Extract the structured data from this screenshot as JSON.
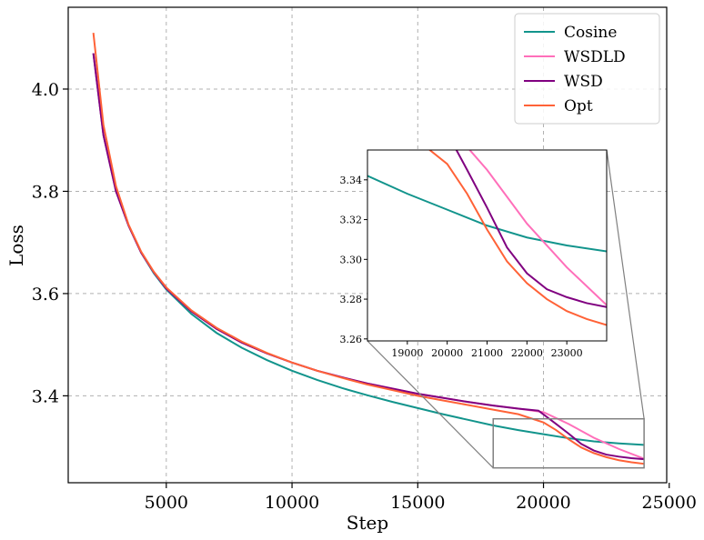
{
  "chart_data": {
    "type": "line",
    "xlabel": "Step",
    "ylabel": "Loss",
    "xlim": [
      1100,
      24900
    ],
    "ylim": [
      3.23,
      4.16
    ],
    "xticks": [
      5000,
      10000,
      15000,
      20000,
      25000
    ],
    "xtick_labels": [
      "5000",
      "10000",
      "15000",
      "20000",
      "25000"
    ],
    "yticks": [
      3.4,
      3.6,
      3.8,
      4.0
    ],
    "ytick_labels": [
      "3.4",
      "3.6",
      "3.8",
      "4.0"
    ],
    "grid": true,
    "legend_position": "top-right",
    "colors": {
      "Cosine": "#12948c",
      "WSDLD": "#ff6fba",
      "WSD": "#800080",
      "Opt": "#ff6237",
      "axes": "#000000",
      "grid": "#b0b0b0",
      "inset_box": "#808080"
    },
    "series": [
      {
        "name": "Cosine",
        "x": [
          2100,
          2500,
          3000,
          3500,
          4000,
          4500,
          5000,
          6000,
          7000,
          8000,
          9000,
          10000,
          11000,
          12000,
          13000,
          14000,
          15000,
          16000,
          17000,
          18000,
          19000,
          20000,
          21000,
          22000,
          23000,
          24000
        ],
        "y": [
          4.07,
          3.91,
          3.8,
          3.733,
          3.68,
          3.64,
          3.608,
          3.56,
          3.523,
          3.494,
          3.47,
          3.449,
          3.431,
          3.415,
          3.401,
          3.388,
          3.376,
          3.364,
          3.353,
          3.342,
          3.333,
          3.325,
          3.317,
          3.311,
          3.307,
          3.304
        ]
      },
      {
        "name": "WSDLD",
        "x": [
          2100,
          2500,
          3000,
          3500,
          4000,
          4500,
          5000,
          6000,
          7000,
          8000,
          9000,
          10000,
          11000,
          12000,
          13000,
          14000,
          15000,
          16000,
          17000,
          18000,
          19000,
          20000,
          21000,
          22000,
          23000,
          24000
        ],
        "y": [
          4.07,
          3.91,
          3.8,
          3.733,
          3.68,
          3.642,
          3.61,
          3.565,
          3.531,
          3.504,
          3.483,
          3.465,
          3.449,
          3.436,
          3.424,
          3.414,
          3.404,
          3.396,
          3.388,
          3.381,
          3.375,
          3.368,
          3.345,
          3.318,
          3.296,
          3.277
        ]
      },
      {
        "name": "WSD",
        "x": [
          2100,
          2500,
          3000,
          3500,
          4000,
          4500,
          5000,
          6000,
          7000,
          8000,
          9000,
          10000,
          11000,
          12000,
          13000,
          14000,
          15000,
          16000,
          17000,
          18000,
          19000,
          19800,
          20500,
          21000,
          21500,
          22000,
          22500,
          23000,
          23500,
          24000
        ],
        "y": [
          4.07,
          3.91,
          3.8,
          3.733,
          3.68,
          3.642,
          3.61,
          3.565,
          3.531,
          3.504,
          3.483,
          3.465,
          3.449,
          3.436,
          3.424,
          3.414,
          3.404,
          3.396,
          3.388,
          3.381,
          3.375,
          3.371,
          3.345,
          3.326,
          3.306,
          3.293,
          3.285,
          3.281,
          3.278,
          3.276
        ]
      },
      {
        "name": "Opt",
        "x": [
          2100,
          2500,
          3000,
          3500,
          4000,
          4500,
          5000,
          6000,
          7000,
          8000,
          9000,
          10000,
          11000,
          12000,
          13000,
          14000,
          15000,
          16000,
          17000,
          18000,
          19000,
          20000,
          20500,
          21000,
          21500,
          22000,
          22500,
          23000,
          23500,
          24000
        ],
        "y": [
          4.11,
          3.93,
          3.81,
          3.735,
          3.682,
          3.643,
          3.612,
          3.567,
          3.533,
          3.506,
          3.484,
          3.465,
          3.449,
          3.435,
          3.422,
          3.411,
          3.4,
          3.391,
          3.382,
          3.373,
          3.364,
          3.348,
          3.333,
          3.315,
          3.299,
          3.288,
          3.28,
          3.274,
          3.27,
          3.267
        ]
      }
    ],
    "inset": {
      "xlim": [
        18000,
        24000
      ],
      "ylim": [
        3.259,
        3.355
      ],
      "xticks": [
        19000,
        20000,
        21000,
        22000,
        23000
      ],
      "xtick_labels": [
        "19000",
        "20000",
        "21000",
        "22000",
        "23000"
      ],
      "yticks": [
        3.26,
        3.28,
        3.3,
        3.32,
        3.34
      ],
      "ytick_labels": [
        "3.26",
        "3.28",
        "3.30",
        "3.32",
        "3.34"
      ],
      "grid": false
    }
  }
}
